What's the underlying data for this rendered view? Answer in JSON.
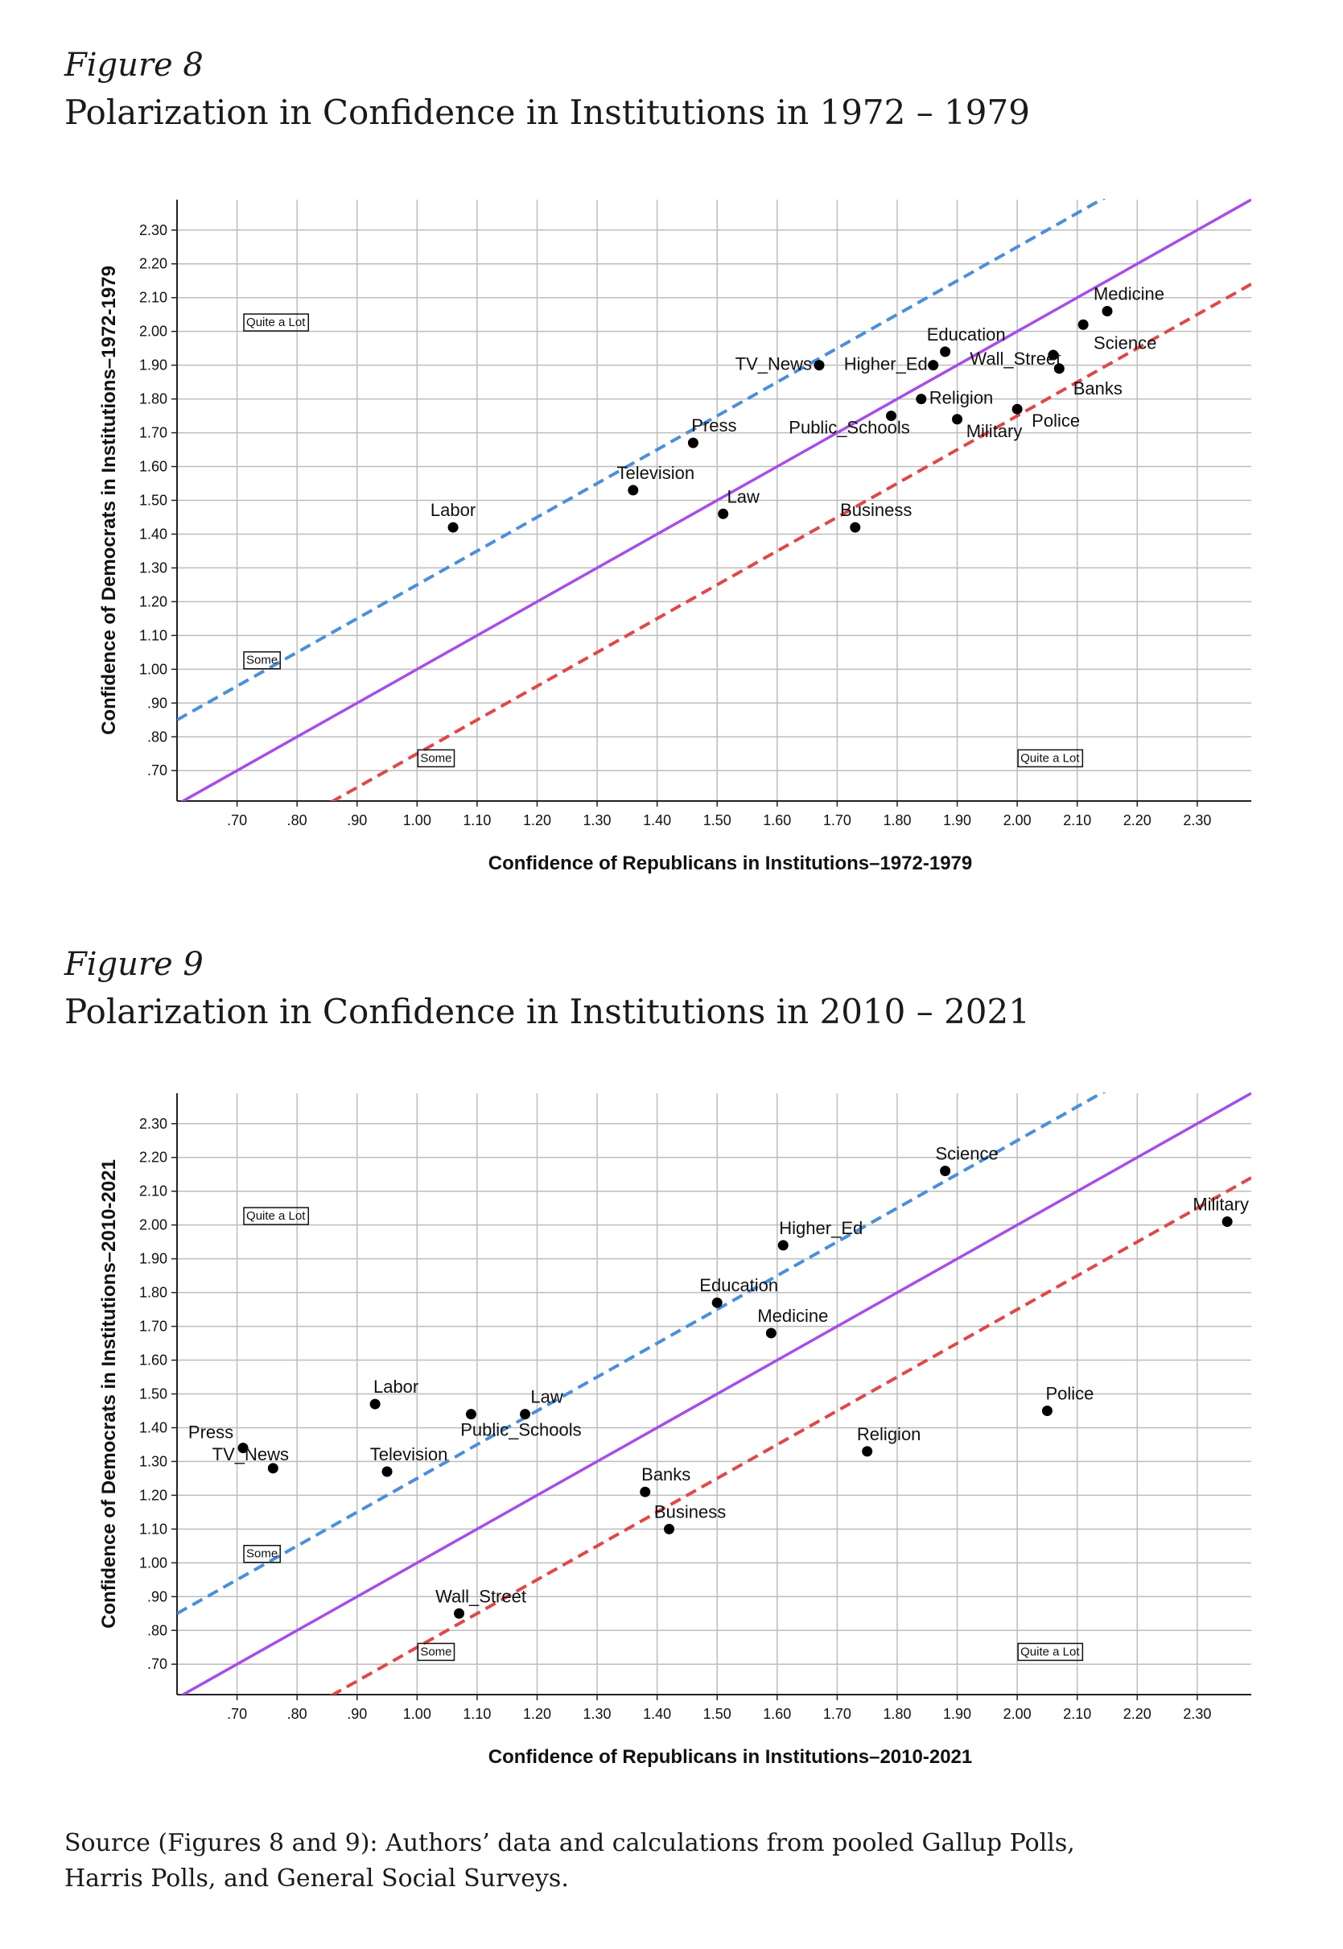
{
  "figures": [
    {
      "figure_number": "Figure 8",
      "title": "Polarization in Confidence in Institutions in 1972 – 1979"
    },
    {
      "figure_number": "Figure 9",
      "title": "Polarization in Confidence in Institutions in 2010 – 2021"
    }
  ],
  "source": {
    "line1": "Source (Figures 8 and 9): Authors’ data and calculations from pooled Gallup Polls,",
    "line2": "Harris Polls, and General Social Surveys."
  },
  "colors": {
    "equality_line": "#a64ee8",
    "democrat_band": "#4a90d9",
    "republican_band": "#e04848",
    "grid": "#bdbdbd",
    "point": "#000000"
  },
  "chart_data": [
    {
      "type": "scatter",
      "title": "",
      "xlabel": "Confidence of Republicans in Institutions–1972-1979",
      "ylabel": "Confidence of Democrats in Institutions–1972-1979",
      "xlim": [
        0.6,
        2.39
      ],
      "ylim": [
        0.61,
        2.39
      ],
      "grid": true,
      "x_ticks": [
        0.7,
        0.8,
        0.9,
        1.0,
        1.1,
        1.2,
        1.3,
        1.4,
        1.5,
        1.6,
        1.7,
        1.8,
        1.9,
        2.0,
        2.1,
        2.2,
        2.3
      ],
      "x_tick_labels": [
        ".70",
        ".80",
        ".90",
        "1.00",
        "1.10",
        "1.20",
        "1.30",
        "1.40",
        "1.50",
        "1.60",
        "1.70",
        "1.80",
        "1.90",
        "2.00",
        "2.10",
        "2.20",
        "2.30"
      ],
      "y_ticks": [
        0.7,
        0.8,
        0.9,
        1.0,
        1.1,
        1.2,
        1.3,
        1.4,
        1.5,
        1.6,
        1.7,
        1.8,
        1.9,
        2.0,
        2.1,
        2.2,
        2.3
      ],
      "y_tick_labels": [
        ".70",
        ".80",
        ".90",
        "1.00",
        "1.10",
        "1.20",
        "1.30",
        "1.40",
        "1.50",
        "1.60",
        "1.70",
        "1.80",
        "1.90",
        "2.00",
        "2.10",
        "2.20",
        "2.30"
      ],
      "reference_lines": [
        {
          "kind": "equality",
          "intercept": 0.0,
          "slope": 1,
          "style": "solid",
          "color": "#a64ee8"
        },
        {
          "kind": "democrat-offset",
          "intercept": 0.25,
          "slope": 1,
          "style": "dashed",
          "color": "#4a90d9"
        },
        {
          "kind": "republican-offset",
          "intercept": -0.25,
          "slope": 1,
          "style": "dashed",
          "color": "#e04848"
        }
      ],
      "box_annotations": [
        {
          "text": "Quite a Lot",
          "x": 0.71,
          "y": 2.03
        },
        {
          "text": "Some",
          "x": 0.71,
          "y": 1.03
        },
        {
          "text": "Some",
          "x": 1.0,
          "y": 0.74
        },
        {
          "text": "Quite a Lot",
          "x": 2.0,
          "y": 0.74
        }
      ],
      "points": [
        {
          "label": "Labor",
          "x": 1.06,
          "y": 1.42
        },
        {
          "label": "Television",
          "x": 1.36,
          "y": 1.53
        },
        {
          "label": "Press",
          "x": 1.46,
          "y": 1.67
        },
        {
          "label": "Law",
          "x": 1.51,
          "y": 1.46
        },
        {
          "label": "TV_News",
          "x": 1.67,
          "y": 1.9
        },
        {
          "label": "Business",
          "x": 1.73,
          "y": 1.42
        },
        {
          "label": "Public_Schools",
          "x": 1.79,
          "y": 1.75
        },
        {
          "label": "Religion",
          "x": 1.84,
          "y": 1.8
        },
        {
          "label": "Higher_Ed",
          "x": 1.86,
          "y": 1.9
        },
        {
          "label": "Education",
          "x": 1.88,
          "y": 1.94
        },
        {
          "label": "Military",
          "x": 1.9,
          "y": 1.74
        },
        {
          "label": "Police",
          "x": 2.0,
          "y": 1.77
        },
        {
          "label": "Wall_Street",
          "x": 2.06,
          "y": 1.93
        },
        {
          "label": "Banks",
          "x": 2.07,
          "y": 1.89
        },
        {
          "label": "Science",
          "x": 2.11,
          "y": 2.02
        },
        {
          "label": "Medicine",
          "x": 2.15,
          "y": 2.06
        }
      ]
    },
    {
      "type": "scatter",
      "title": "",
      "xlabel": "Confidence of Republicans in Institutions–2010-2021",
      "ylabel": "Confidence of Democrats in Institutions–2010-2021",
      "xlim": [
        0.6,
        2.39
      ],
      "ylim": [
        0.61,
        2.39
      ],
      "grid": true,
      "x_ticks": [
        0.7,
        0.8,
        0.9,
        1.0,
        1.1,
        1.2,
        1.3,
        1.4,
        1.5,
        1.6,
        1.7,
        1.8,
        1.9,
        2.0,
        2.1,
        2.2,
        2.3
      ],
      "x_tick_labels": [
        ".70",
        ".80",
        ".90",
        "1.00",
        "1.10",
        "1.20",
        "1.30",
        "1.40",
        "1.50",
        "1.60",
        "1.70",
        "1.80",
        "1.90",
        "2.00",
        "2.10",
        "2.20",
        "2.30"
      ],
      "y_ticks": [
        0.7,
        0.8,
        0.9,
        1.0,
        1.1,
        1.2,
        1.3,
        1.4,
        1.5,
        1.6,
        1.7,
        1.8,
        1.9,
        2.0,
        2.1,
        2.2,
        2.3
      ],
      "y_tick_labels": [
        ".70",
        ".80",
        ".90",
        "1.00",
        "1.10",
        "1.20",
        "1.30",
        "1.40",
        "1.50",
        "1.60",
        "1.70",
        "1.80",
        "1.90",
        "2.00",
        "2.10",
        "2.20",
        "2.30"
      ],
      "reference_lines": [
        {
          "kind": "equality",
          "intercept": 0.0,
          "slope": 1,
          "style": "solid",
          "color": "#a64ee8"
        },
        {
          "kind": "democrat-offset",
          "intercept": 0.25,
          "slope": 1,
          "style": "dashed",
          "color": "#4a90d9"
        },
        {
          "kind": "republican-offset",
          "intercept": -0.25,
          "slope": 1,
          "style": "dashed",
          "color": "#e04848"
        }
      ],
      "box_annotations": [
        {
          "text": "Quite a Lot",
          "x": 0.71,
          "y": 2.03
        },
        {
          "text": "Some",
          "x": 0.71,
          "y": 1.03
        },
        {
          "text": "Some",
          "x": 1.0,
          "y": 0.74
        },
        {
          "text": "Quite a Lot",
          "x": 2.0,
          "y": 0.74
        }
      ],
      "points": [
        {
          "label": "Press",
          "x": 0.71,
          "y": 1.34
        },
        {
          "label": "TV_News",
          "x": 0.76,
          "y": 1.28
        },
        {
          "label": "Labor",
          "x": 0.93,
          "y": 1.47
        },
        {
          "label": "Television",
          "x": 0.95,
          "y": 1.27
        },
        {
          "label": "Wall_Street",
          "x": 1.07,
          "y": 0.85
        },
        {
          "label": "Public_Schools",
          "x": 1.09,
          "y": 1.44
        },
        {
          "label": "Law",
          "x": 1.18,
          "y": 1.44
        },
        {
          "label": "Banks",
          "x": 1.38,
          "y": 1.21
        },
        {
          "label": "Business",
          "x": 1.42,
          "y": 1.1
        },
        {
          "label": "Education",
          "x": 1.5,
          "y": 1.77
        },
        {
          "label": "Medicine",
          "x": 1.59,
          "y": 1.68
        },
        {
          "label": "Higher_Ed",
          "x": 1.61,
          "y": 1.94
        },
        {
          "label": "Religion",
          "x": 1.75,
          "y": 1.33
        },
        {
          "label": "Science",
          "x": 1.88,
          "y": 2.16
        },
        {
          "label": "Police",
          "x": 2.05,
          "y": 1.45
        },
        {
          "label": "Military",
          "x": 2.35,
          "y": 2.01
        }
      ]
    }
  ]
}
